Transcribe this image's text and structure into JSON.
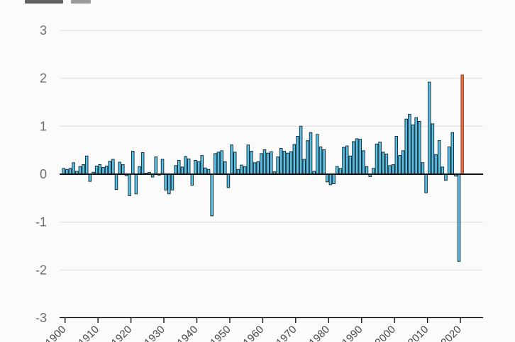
{
  "page": {
    "background": "#fbfbfb",
    "note_top_left": "cropped title fragment (text cut off by screenshot edge)"
  },
  "chart_data": {
    "type": "bar",
    "title": "",
    "xlabel": "",
    "ylabel": "",
    "year_start": 1900,
    "year_end": 2021,
    "x_tick_labels": [
      "1900",
      "1910",
      "1920",
      "1930",
      "1940",
      "1950",
      "1960",
      "1970",
      "1980",
      "1990",
      "2000",
      "2010",
      "2020"
    ],
    "y_tick_labels": [
      "3",
      "2",
      "1",
      "0",
      "-1",
      "-2",
      "-3"
    ],
    "yticks": [
      3,
      2,
      1,
      0,
      -1,
      -2,
      -3
    ],
    "ylim": [
      -3,
      3
    ],
    "grid": true,
    "legend": "none",
    "values": [
      0.12,
      0.1,
      0.12,
      0.24,
      0.06,
      0.16,
      0.2,
      0.38,
      -0.15,
      0.04,
      0.17,
      0.2,
      0.14,
      0.17,
      0.27,
      0.31,
      -0.32,
      0.25,
      0.2,
      -0.03,
      -0.45,
      0.48,
      -0.41,
      0.16,
      0.45,
      0.02,
      0.04,
      -0.06,
      0.36,
      -0.02,
      0.31,
      -0.33,
      -0.41,
      -0.33,
      0.18,
      0.29,
      0.15,
      0.37,
      0.32,
      -0.23,
      0.29,
      0.26,
      0.39,
      0.13,
      0.1,
      -0.87,
      0.43,
      0.46,
      0.49,
      0.26,
      -0.28,
      0.61,
      0.46,
      0.1,
      0.19,
      0.16,
      0.61,
      0.48,
      0.24,
      0.26,
      0.43,
      0.51,
      0.44,
      0.47,
      0.05,
      0.36,
      0.54,
      0.48,
      0.44,
      0.47,
      0.62,
      0.79,
      1.0,
      0.31,
      0.7,
      0.87,
      0.06,
      0.83,
      0.57,
      0.51,
      -0.16,
      -0.22,
      -0.2,
      0.16,
      0.12,
      0.56,
      0.59,
      0.38,
      0.68,
      0.74,
      0.73,
      0.49,
      0.16,
      -0.05,
      0.12,
      0.63,
      0.67,
      0.46,
      0.42,
      0.18,
      0.2,
      0.79,
      0.39,
      0.49,
      1.15,
      1.25,
      1.03,
      1.18,
      1.1,
      0.24,
      -0.39,
      1.92,
      1.05,
      0.41,
      0.7,
      0.15,
      -0.13,
      0.57,
      0.87,
      -0.04,
      -1.82,
      2.07
    ],
    "highlight_last_bar": true,
    "colors": {
      "bar_fill": "#55c3ea",
      "bar_stroke": "#0f1e28",
      "highlight_fill": "#e06e48",
      "highlight_stroke": "#9c3d22",
      "grid_line": "#e3e3e3",
      "zero_line": "#111111",
      "axis_line": "#111111",
      "y_tick_label": "#6e6e6e",
      "x_tick_label": "#464646"
    }
  }
}
